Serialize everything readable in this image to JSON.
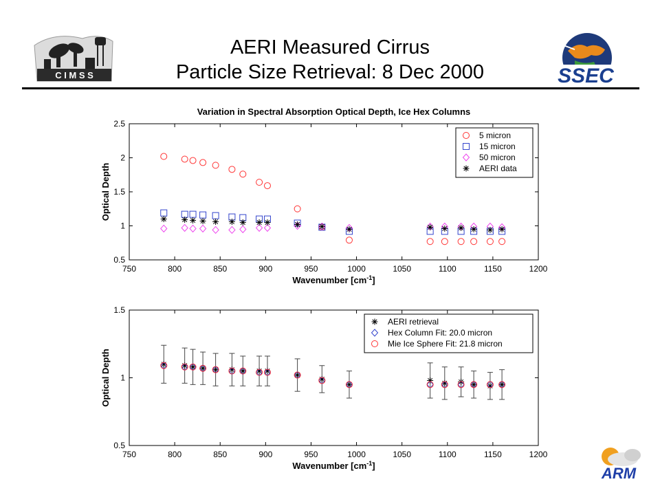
{
  "slide": {
    "title_line1": "AERI Measured Cirrus",
    "title_line2": "Particle Size Retrieval:  8 Dec 2000",
    "logos": {
      "cimss": "C I M S S",
      "ssec": "SSEC",
      "arm": "ARM"
    }
  },
  "colors": {
    "red": "#ff3333",
    "blue": "#3344cc",
    "magenta": "#ee44ee",
    "black": "#000000",
    "ssec_blue": "#1a3f8f",
    "arm_blue": "#1f3fa8",
    "arm_orange": "#f0a020"
  },
  "chart_data": [
    {
      "type": "scatter",
      "title": "Variation in Spectral Absorption Optical Depth, Ice Hex Columns",
      "xlabel": "Wavenumber [cm",
      "xlabel_sup": "-1",
      "xlabel_end": "]",
      "ylabel": "Optical Depth",
      "xlim": [
        750,
        1200
      ],
      "ylim": [
        0.5,
        2.5
      ],
      "xticks": [
        750,
        800,
        850,
        900,
        950,
        1000,
        1050,
        1100,
        1150,
        1200
      ],
      "yticks": [
        0.5,
        1,
        1.5,
        2,
        2.5
      ],
      "ytick_labels": [
        "0.5",
        "1",
        "1.5",
        "2",
        "2.5"
      ],
      "legend_position": "top-right",
      "series": [
        {
          "name": "5 micron",
          "marker": "circle",
          "color": "#ff3333",
          "x": [
            788,
            811,
            820,
            831,
            845,
            863,
            875,
            893,
            902,
            935,
            962,
            992,
            1081,
            1097,
            1115,
            1129,
            1147,
            1160
          ],
          "y": [
            2.02,
            1.98,
            1.96,
            1.93,
            1.89,
            1.83,
            1.76,
            1.64,
            1.59,
            1.25,
            0.98,
            0.79,
            0.77,
            0.77,
            0.77,
            0.77,
            0.77,
            0.77
          ]
        },
        {
          "name": "15 micron",
          "marker": "square",
          "color": "#3344cc",
          "x": [
            788,
            811,
            820,
            831,
            845,
            863,
            875,
            893,
            902,
            935,
            962,
            992,
            1081,
            1097,
            1115,
            1129,
            1147,
            1160
          ],
          "y": [
            1.19,
            1.17,
            1.17,
            1.16,
            1.15,
            1.13,
            1.12,
            1.1,
            1.1,
            1.04,
            0.98,
            0.92,
            0.92,
            0.92,
            0.92,
            0.92,
            0.92,
            0.92
          ]
        },
        {
          "name": "50 micron",
          "marker": "diamond",
          "color": "#ee44ee",
          "x": [
            788,
            811,
            820,
            831,
            845,
            863,
            875,
            893,
            902,
            935,
            962,
            992,
            1081,
            1097,
            1115,
            1129,
            1147,
            1160
          ],
          "y": [
            0.96,
            0.97,
            0.96,
            0.96,
            0.94,
            0.94,
            0.95,
            0.97,
            0.97,
            1.0,
            0.99,
            0.97,
            0.99,
            0.99,
            0.99,
            0.99,
            0.99,
            0.98
          ]
        },
        {
          "name": "AERI data",
          "marker": "asterisk",
          "color": "#000000",
          "x": [
            788,
            811,
            820,
            831,
            845,
            863,
            875,
            893,
            902,
            935,
            962,
            992,
            1081,
            1097,
            1115,
            1129,
            1147,
            1160
          ],
          "y": [
            1.1,
            1.09,
            1.08,
            1.07,
            1.06,
            1.06,
            1.05,
            1.05,
            1.05,
            1.02,
            0.99,
            0.95,
            0.98,
            0.96,
            0.97,
            0.95,
            0.94,
            0.95
          ]
        }
      ]
    },
    {
      "type": "scatter",
      "title": "",
      "xlabel": "Wavenumber [cm",
      "xlabel_sup": "-1",
      "xlabel_end": "]",
      "ylabel": "Optical Depth",
      "xlim": [
        750,
        1200
      ],
      "ylim": [
        0.5,
        1.5
      ],
      "xticks": [
        750,
        800,
        850,
        900,
        950,
        1000,
        1050,
        1100,
        1150,
        1200
      ],
      "yticks": [
        0.5,
        1,
        1.5
      ],
      "ytick_labels": [
        "0.5",
        "1",
        "1.5"
      ],
      "legend_position": "top-right",
      "series": [
        {
          "name": "AERI retrieval",
          "marker": "asterisk",
          "color": "#000000",
          "x": [
            788,
            811,
            820,
            831,
            845,
            863,
            875,
            893,
            902,
            935,
            962,
            992,
            1081,
            1097,
            1115,
            1129,
            1147,
            1160
          ],
          "y": [
            1.1,
            1.09,
            1.08,
            1.07,
            1.06,
            1.06,
            1.05,
            1.05,
            1.05,
            1.02,
            0.99,
            0.95,
            0.98,
            0.96,
            0.97,
            0.95,
            0.94,
            0.95
          ],
          "error": [
            0.14,
            0.13,
            0.13,
            0.12,
            0.12,
            0.12,
            0.11,
            0.11,
            0.11,
            0.12,
            0.1,
            0.1,
            0.13,
            0.12,
            0.11,
            0.1,
            0.1,
            0.11
          ]
        },
        {
          "name": "Hex Column Fit:  20.0 micron",
          "marker": "diamond",
          "color": "#3344cc",
          "x": [
            788,
            811,
            820,
            831,
            845,
            863,
            875,
            893,
            902,
            935,
            962,
            992,
            1081,
            1097,
            1115,
            1129,
            1147,
            1160
          ],
          "y": [
            1.09,
            1.08,
            1.08,
            1.07,
            1.06,
            1.05,
            1.05,
            1.04,
            1.04,
            1.02,
            0.98,
            0.95,
            0.95,
            0.95,
            0.95,
            0.95,
            0.95,
            0.95
          ]
        },
        {
          "name": "Mie Ice Sphere Fit:  21.8 micron",
          "marker": "circle",
          "color": "#ff3333",
          "x": [
            788,
            811,
            820,
            831,
            845,
            863,
            875,
            893,
            902,
            935,
            962,
            992,
            1081,
            1097,
            1115,
            1129,
            1147,
            1160
          ],
          "y": [
            1.09,
            1.08,
            1.08,
            1.07,
            1.06,
            1.05,
            1.05,
            1.04,
            1.04,
            1.02,
            0.98,
            0.95,
            0.95,
            0.95,
            0.95,
            0.95,
            0.95,
            0.95
          ]
        }
      ]
    }
  ]
}
